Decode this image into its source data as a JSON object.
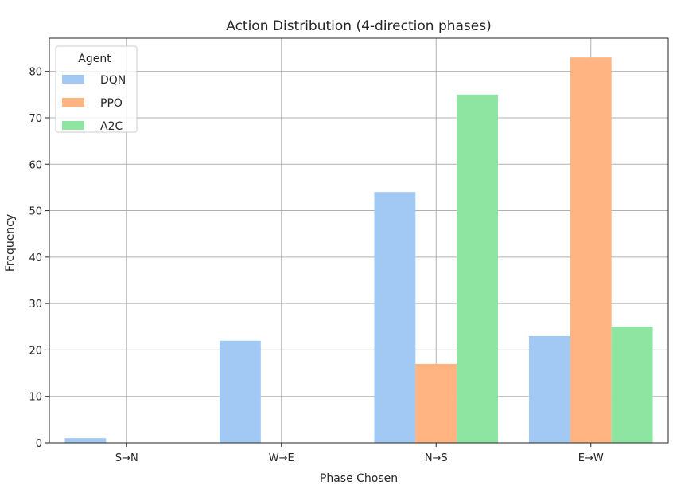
{
  "chart_data": {
    "type": "bar",
    "title": "Action Distribution (4-direction phases)",
    "xlabel": "Phase Chosen",
    "ylabel": "Frequency",
    "categories": [
      "S→N",
      "W→E",
      "N→S",
      "E→W"
    ],
    "series": [
      {
        "name": "DQN",
        "color": "#a1c9f4",
        "values": [
          1,
          22,
          54,
          23
        ]
      },
      {
        "name": "PPO",
        "color": "#ffb482",
        "values": [
          0,
          0,
          17,
          83
        ]
      },
      {
        "name": "A2C",
        "color": "#8de5a1",
        "values": [
          0,
          0,
          75,
          25
        ]
      }
    ],
    "ylim": [
      0,
      87.15
    ],
    "yticks": [
      0,
      10,
      20,
      30,
      40,
      50,
      60,
      70,
      80
    ],
    "grid": true,
    "legend": {
      "title": "Agent",
      "placement": "top-left"
    }
  }
}
